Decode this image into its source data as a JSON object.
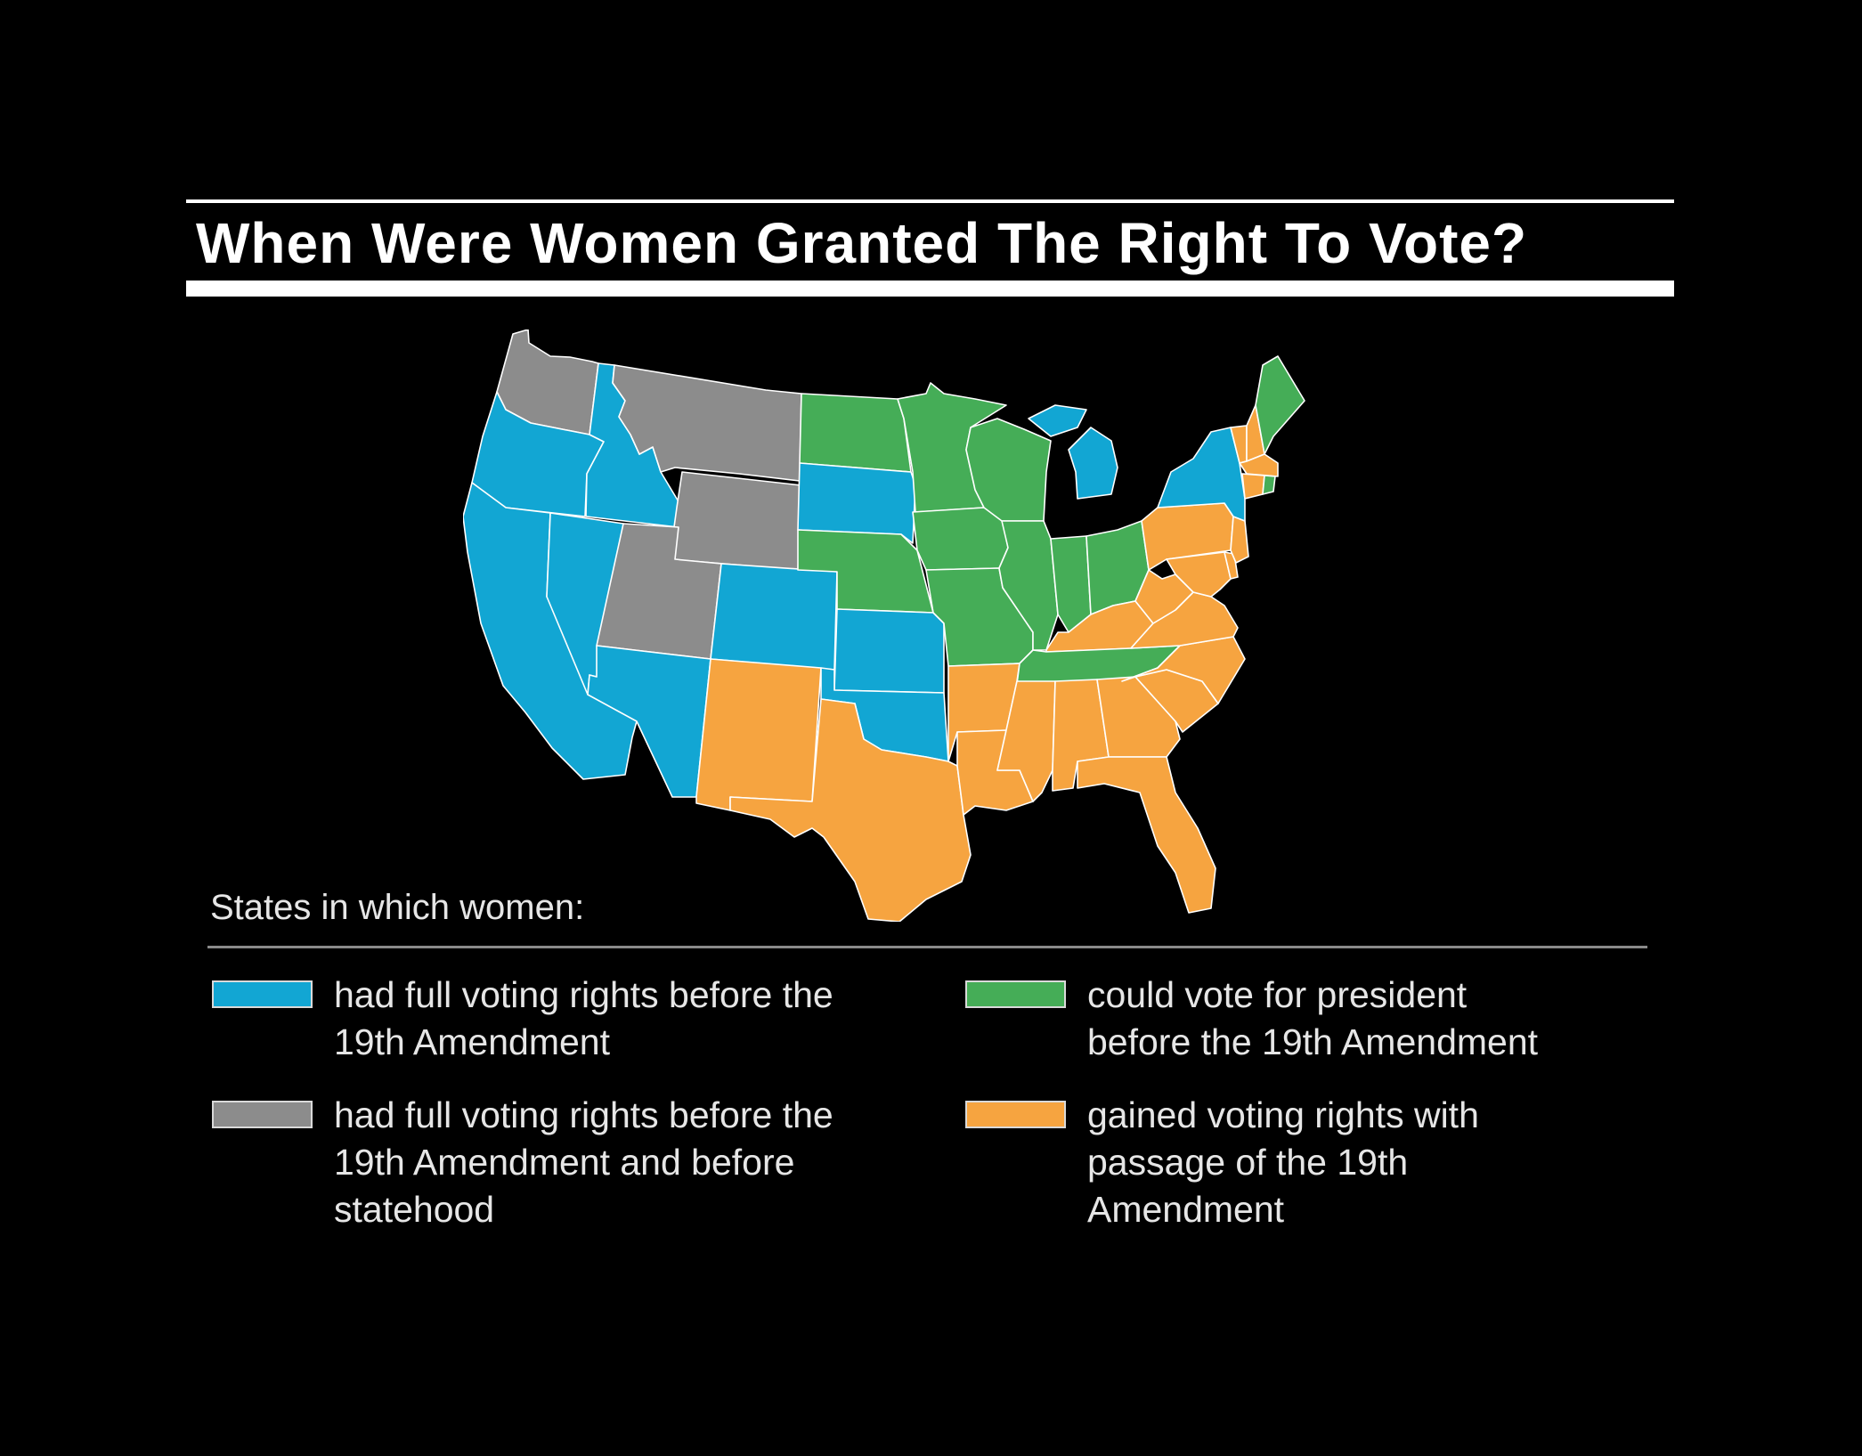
{
  "title": "When Were Women Granted The Right To Vote?",
  "colors": {
    "background": "#000000",
    "blue": "#12a6d3",
    "gray": "#8c8c8c",
    "green": "#45ad57",
    "orange": "#f6a440",
    "border": "#ffffff"
  },
  "legend": {
    "heading": "States in which women:",
    "items": [
      {
        "color": "#12a6d3",
        "label": "had full voting rights before the\n19th Amendment"
      },
      {
        "color": "#8c8c8c",
        "label": "had full voting rights before the\n19th Amendment and before\nstatehood"
      },
      {
        "color": "#45ad57",
        "label": "could vote for president\nbefore the 19th Amendment"
      },
      {
        "color": "#f6a440",
        "label": "gained voting rights with\npassage of the 19th\nAmendment"
      }
    ]
  },
  "map_regions": {
    "WA": "gray",
    "OR": "blue",
    "CA": "blue",
    "ID": "blue",
    "NV": "blue",
    "MT": "gray",
    "WY": "gray",
    "UT": "gray",
    "AZ": "blue",
    "CO": "blue",
    "NM": "orange",
    "ND": "green",
    "SD": "blue",
    "NE": "green",
    "KS": "blue",
    "OK": "blue",
    "TX": "orange",
    "MN": "green",
    "IA": "green",
    "MO": "green",
    "AR": "orange",
    "LA": "orange",
    "WI": "green",
    "IL": "green",
    "MI": "blue",
    "IN": "green",
    "OH": "green",
    "KY": "orange",
    "TN": "green",
    "MS": "orange",
    "AL": "orange",
    "GA": "orange",
    "FL": "orange",
    "SC": "orange",
    "NC": "orange",
    "VA": "orange",
    "WV": "orange",
    "PA": "orange",
    "NY": "blue",
    "VT": "orange",
    "NH": "orange",
    "ME": "green",
    "MA": "orange",
    "RI": "green",
    "CT": "orange",
    "NJ": "orange",
    "DE": "orange",
    "MD": "orange"
  }
}
